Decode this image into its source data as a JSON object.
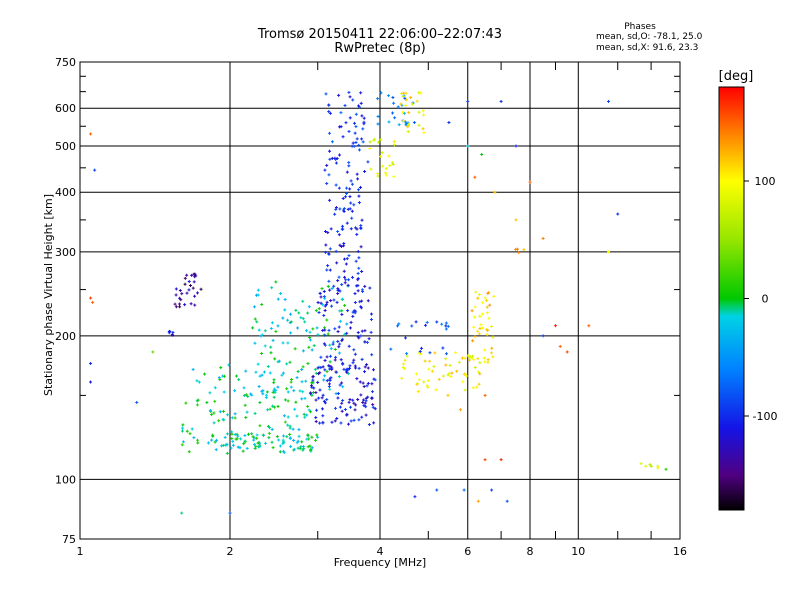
{
  "header": {
    "title": "Tromsø 20150411 22:06:00–22:07:43",
    "subtitle": "RwPretec (8p)"
  },
  "stats": {
    "heading": "Phases",
    "o_line": "mean, sd,O: -78.1, 25.0",
    "x_line": "mean, sd,X:  91.6, 23.3"
  },
  "colorbar": {
    "unit": "[deg]",
    "ticks": [
      100,
      0,
      -100
    ],
    "tick_labels": [
      "100",
      "0",
      "-100"
    ],
    "range": [
      -180,
      180
    ]
  },
  "chart_data": {
    "type": "scatter",
    "title": "Tromsø 20150411 22:06:00–22:07:43",
    "subtitle": "RwPretec (8p)",
    "xlabel": "Frequency [MHz]",
    "ylabel": "Stationary phase Virtual Height [km]",
    "xscale": "log",
    "yscale": "log",
    "xlim": [
      1,
      16
    ],
    "ylim": [
      75,
      750
    ],
    "xticks": [
      1,
      2,
      4,
      6,
      8,
      10,
      16
    ],
    "xtick_labels": [
      "1",
      "2",
      "4",
      "6",
      "8",
      "10",
      "16"
    ],
    "x_minor_ticks": [
      3,
      5,
      7,
      9,
      12,
      14
    ],
    "yticks": [
      75,
      100,
      200,
      300,
      400,
      500,
      600,
      750
    ],
    "ytick_labels": [
      "75",
      "100",
      "200",
      "300",
      "400",
      "500",
      "600",
      "750"
    ],
    "y_minor_ticks": [
      150,
      250,
      350,
      450,
      550,
      650,
      700
    ],
    "grid": true,
    "colorbar": {
      "label": "[deg]",
      "range": [
        -180,
        180
      ],
      "ticks": [
        -100,
        0,
        100
      ]
    },
    "clusters": [
      {
        "x": [
          1.6,
          2.95
        ],
        "y": [
          113,
          175
        ],
        "phase": -10,
        "n": 150
      },
      {
        "x": [
          1.95,
          3.0
        ],
        "y": [
          115,
          125
        ],
        "phase": -12,
        "n": 70
      },
      {
        "x": [
          2.2,
          3.5
        ],
        "y": [
          150,
          260
        ],
        "phase": -15,
        "n": 120
      },
      {
        "x": [
          2.9,
          3.95
        ],
        "y": [
          130,
          175
        ],
        "phase": -110,
        "n": 110
      },
      {
        "x": [
          3.0,
          3.85
        ],
        "y": [
          170,
          260
        ],
        "phase": -105,
        "n": 100
      },
      {
        "x": [
          3.1,
          3.7
        ],
        "y": [
          260,
          420
        ],
        "phase": -100,
        "n": 80
      },
      {
        "x": [
          3.1,
          3.8
        ],
        "y": [
          420,
          650
        ],
        "phase": -95,
        "n": 60
      },
      {
        "x": [
          1.55,
          1.75
        ],
        "y": [
          230,
          270
        ],
        "phase": -140,
        "n": 30
      },
      {
        "x": [
          1.5,
          1.6
        ],
        "y": [
          200,
          205
        ],
        "phase": -120,
        "n": 6
      },
      {
        "x": [
          3.8,
          4.3
        ],
        "y": [
          430,
          520
        ],
        "phase": 85,
        "n": 22
      },
      {
        "x": [
          3.9,
          4.7
        ],
        "y": [
          550,
          650
        ],
        "phase": -60,
        "n": 25
      },
      {
        "x": [
          4.4,
          4.9
        ],
        "y": [
          520,
          650
        ],
        "phase": 100,
        "n": 25
      },
      {
        "x": [
          4.3,
          6.4
        ],
        "y": [
          150,
          185
        ],
        "phase": 100,
        "n": 60
      },
      {
        "x": [
          6.1,
          6.8
        ],
        "y": [
          175,
          250
        ],
        "phase": 110,
        "n": 40
      },
      {
        "x": [
          4.2,
          5.5
        ],
        "y": [
          180,
          215
        ],
        "phase": -80,
        "n": 20
      },
      {
        "x": [
          13.0,
          14.5
        ],
        "y": [
          105,
          108
        ],
        "phase": 80,
        "n": 6
      },
      {
        "x": [
          7.4,
          8.0
        ],
        "y": [
          295,
          305
        ],
        "phase": 120,
        "n": 4
      }
    ],
    "scattered_points": [
      [
        1.05,
        530,
        150
      ],
      [
        1.05,
        240,
        160
      ],
      [
        1.06,
        235,
        150
      ],
      [
        1.07,
        445,
        -90
      ],
      [
        1.05,
        175,
        -100
      ],
      [
        1.05,
        160,
        -110
      ],
      [
        1.3,
        145,
        -80
      ],
      [
        1.4,
        185,
        30
      ],
      [
        1.6,
        85,
        -10
      ],
      [
        2.0,
        85,
        -80
      ],
      [
        4.7,
        92,
        -100
      ],
      [
        5.2,
        95,
        -80
      ],
      [
        5.9,
        95,
        -70
      ],
      [
        6.3,
        90,
        130
      ],
      [
        6.7,
        95,
        -90
      ],
      [
        7.2,
        90,
        -80
      ],
      [
        6.5,
        110,
        160
      ],
      [
        7.0,
        110,
        170
      ],
      [
        6.2,
        430,
        150
      ],
      [
        6.8,
        400,
        120
      ],
      [
        7.5,
        350,
        120
      ],
      [
        8.0,
        420,
        150
      ],
      [
        8.5,
        320,
        140
      ],
      [
        9.0,
        210,
        170
      ],
      [
        9.5,
        185,
        160
      ],
      [
        10.5,
        210,
        150
      ],
      [
        11.5,
        620,
        -90
      ],
      [
        12.0,
        360,
        -100
      ],
      [
        11.5,
        300,
        100
      ],
      [
        7.0,
        620,
        -100
      ],
      [
        6.0,
        620,
        -90
      ],
      [
        5.5,
        560,
        -100
      ],
      [
        7.5,
        500,
        -110
      ],
      [
        6.0,
        500,
        -20
      ],
      [
        6.4,
        480,
        0
      ],
      [
        8.5,
        200,
        -90
      ],
      [
        5.8,
        140,
        130
      ],
      [
        6.5,
        150,
        150
      ],
      [
        15.0,
        105,
        10
      ],
      [
        9.2,
        190,
        150
      ]
    ]
  }
}
